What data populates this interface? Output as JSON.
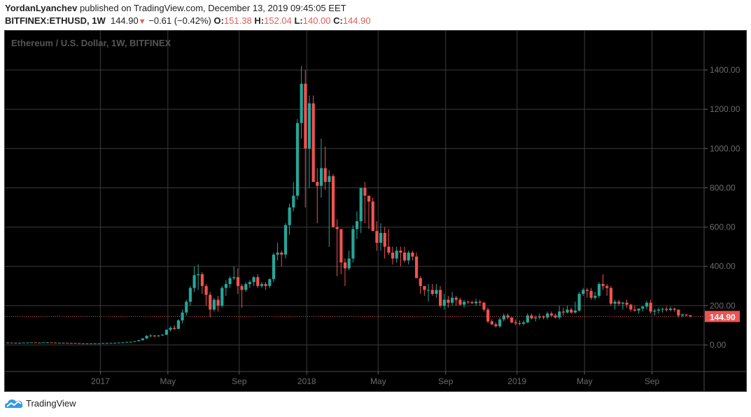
{
  "header": {
    "author": "YordanLyanchev",
    "published_text": "published on TradingView.com, December 13, 2019 09:45:05 EET",
    "symbol": "BITFINEX:ETHUSD, 1W",
    "last_price": "144.90",
    "change": "−0.61 (−0.42%)",
    "direction_icon": "triangle-down-icon",
    "ohlc": {
      "o_label": "O:",
      "o": "151.38",
      "h_label": "H:",
      "h": "152.04",
      "l_label": "L:",
      "l": "140.00",
      "c_label": "C:",
      "c": "144.90"
    }
  },
  "chart": {
    "legend": "Ethereum / U.S. Dollar, 1W, BITFINEX",
    "current_price_label": "144.90",
    "colors": {
      "up": "#26a69a",
      "down": "#ef5350",
      "background": "#000000",
      "grid": "#3c3c3c",
      "price_tag": "#ef5350"
    }
  },
  "footer": {
    "brand": "TradingView",
    "logo_icon": "tradingview-cloud-icon"
  },
  "chart_data": {
    "type": "candlestick",
    "title": "Ethereum / U.S. Dollar, 1W, BITFINEX",
    "xlabel": "",
    "ylabel": "",
    "ylim": [
      -120,
      1570
    ],
    "y_ticks": [
      0,
      200,
      400,
      600,
      800,
      1000,
      1200,
      1400
    ],
    "y_tick_labels": [
      "0.00",
      "200.00",
      "400.00",
      "600.00",
      "800.00",
      "1000.00",
      "1200.00",
      "1400.00"
    ],
    "x_tick_labels": [
      {
        "label": "2017",
        "week": 23
      },
      {
        "label": "May",
        "week": 40
      },
      {
        "label": "Sep",
        "week": 58
      },
      {
        "label": "2018",
        "week": 75
      },
      {
        "label": "May",
        "week": 93
      },
      {
        "label": "Sep",
        "week": 110
      },
      {
        "label": "2019",
        "week": 128
      },
      {
        "label": "May",
        "week": 145
      },
      {
        "label": "Sep",
        "week": 162
      }
    ],
    "grid": true,
    "current_price": 144.9,
    "candles": [
      [
        12,
        13,
        11,
        12
      ],
      [
        12,
        12,
        11,
        11
      ],
      [
        11,
        12,
        10,
        11
      ],
      [
        11,
        12,
        10,
        11
      ],
      [
        11,
        13,
        10,
        12
      ],
      [
        12,
        13,
        11,
        12
      ],
      [
        12,
        13,
        12,
        13
      ],
      [
        13,
        13,
        11,
        12
      ],
      [
        12,
        13,
        11,
        12
      ],
      [
        12,
        13,
        12,
        13
      ],
      [
        13,
        14,
        12,
        13
      ],
      [
        13,
        13,
        11,
        12
      ],
      [
        12,
        12,
        10,
        11
      ],
      [
        11,
        12,
        10,
        11
      ],
      [
        11,
        12,
        10,
        11
      ],
      [
        11,
        11,
        10,
        10
      ],
      [
        10,
        11,
        9,
        10
      ],
      [
        10,
        10,
        9,
        9
      ],
      [
        9,
        10,
        8,
        8
      ],
      [
        8,
        9,
        7,
        8
      ],
      [
        8,
        9,
        7,
        7
      ],
      [
        7,
        9,
        7,
        8
      ],
      [
        8,
        9,
        7,
        8
      ],
      [
        8,
        9,
        7,
        8
      ],
      [
        8,
        11,
        8,
        10
      ],
      [
        10,
        11,
        9,
        10
      ],
      [
        10,
        11,
        10,
        11
      ],
      [
        11,
        12,
        10,
        11
      ],
      [
        11,
        13,
        11,
        12
      ],
      [
        12,
        14,
        11,
        13
      ],
      [
        13,
        16,
        12,
        15
      ],
      [
        15,
        17,
        14,
        16
      ],
      [
        16,
        20,
        15,
        19
      ],
      [
        19,
        25,
        18,
        24
      ],
      [
        24,
        35,
        23,
        33
      ],
      [
        33,
        50,
        30,
        46
      ],
      [
        46,
        55,
        40,
        48
      ],
      [
        48,
        50,
        40,
        44
      ],
      [
        44,
        50,
        42,
        48
      ],
      [
        48,
        55,
        46,
        52
      ],
      [
        52,
        80,
        50,
        77
      ],
      [
        77,
        95,
        70,
        87
      ],
      [
        87,
        100,
        75,
        82
      ],
      [
        82,
        130,
        80,
        125
      ],
      [
        125,
        180,
        110,
        165
      ],
      [
        165,
        230,
        150,
        220
      ],
      [
        220,
        300,
        200,
        290
      ],
      [
        290,
        400,
        270,
        355
      ],
      [
        355,
        410,
        280,
        360
      ],
      [
        360,
        370,
        260,
        300
      ],
      [
        300,
        310,
        200,
        255
      ],
      [
        255,
        270,
        140,
        180
      ],
      [
        180,
        240,
        170,
        230
      ],
      [
        230,
        250,
        170,
        200
      ],
      [
        200,
        300,
        190,
        290
      ],
      [
        290,
        330,
        250,
        310
      ],
      [
        310,
        350,
        290,
        340
      ],
      [
        340,
        400,
        330,
        345
      ],
      [
        345,
        390,
        260,
        300
      ],
      [
        300,
        310,
        190,
        280
      ],
      [
        280,
        320,
        270,
        310
      ],
      [
        310,
        330,
        290,
        320
      ],
      [
        320,
        350,
        300,
        345
      ],
      [
        345,
        360,
        290,
        300
      ],
      [
        300,
        320,
        290,
        310
      ],
      [
        310,
        320,
        280,
        300
      ],
      [
        300,
        340,
        290,
        335
      ],
      [
        335,
        470,
        320,
        460
      ],
      [
        460,
        520,
        430,
        470
      ],
      [
        470,
        480,
        400,
        460
      ],
      [
        460,
        620,
        440,
        610
      ],
      [
        610,
        720,
        560,
        700
      ],
      [
        700,
        830,
        680,
        760
      ],
      [
        760,
        1150,
        740,
        1130
      ],
      [
        1130,
        1420,
        1050,
        1330
      ],
      [
        1330,
        1400,
        700,
        1000
      ],
      [
        1000,
        1270,
        800,
        1230
      ],
      [
        1230,
        1270,
        900,
        830
      ],
      [
        830,
        900,
        620,
        810
      ],
      [
        810,
        1050,
        750,
        900
      ],
      [
        900,
        1010,
        790,
        830
      ],
      [
        830,
        890,
        500,
        860
      ],
      [
        860,
        870,
        750,
        600
      ],
      [
        600,
        640,
        350,
        590
      ],
      [
        590,
        570,
        360,
        420
      ],
      [
        420,
        440,
        300,
        390
      ],
      [
        390,
        480,
        380,
        440
      ],
      [
        440,
        610,
        420,
        590
      ],
      [
        590,
        680,
        540,
        630
      ],
      [
        630,
        770,
        570,
        800
      ],
      [
        800,
        830,
        620,
        760
      ],
      [
        760,
        750,
        590,
        730
      ],
      [
        730,
        750,
        620,
        580
      ],
      [
        580,
        630,
        480,
        520
      ],
      [
        520,
        620,
        480,
        570
      ],
      [
        570,
        600,
        440,
        500
      ],
      [
        500,
        590,
        460,
        470
      ],
      [
        470,
        500,
        410,
        440
      ],
      [
        440,
        500,
        420,
        480
      ],
      [
        480,
        500,
        400,
        470
      ],
      [
        470,
        500,
        420,
        430
      ],
      [
        430,
        480,
        410,
        470
      ],
      [
        470,
        480,
        430,
        450
      ],
      [
        450,
        470,
        350,
        340
      ],
      [
        340,
        350,
        260,
        300
      ],
      [
        300,
        300,
        250,
        280
      ],
      [
        280,
        310,
        220,
        280
      ],
      [
        280,
        310,
        250,
        260
      ],
      [
        260,
        310,
        240,
        280
      ],
      [
        280,
        300,
        190,
        200
      ],
      [
        200,
        260,
        180,
        230
      ],
      [
        230,
        250,
        190,
        215
      ],
      [
        215,
        270,
        200,
        240
      ],
      [
        240,
        250,
        200,
        230
      ],
      [
        230,
        240,
        200,
        205
      ],
      [
        205,
        230,
        190,
        220
      ],
      [
        220,
        225,
        210,
        218
      ],
      [
        218,
        225,
        210,
        212
      ],
      [
        212,
        235,
        200,
        220
      ],
      [
        220,
        230,
        200,
        215
      ],
      [
        215,
        220,
        170,
        180
      ],
      [
        180,
        190,
        110,
        120
      ],
      [
        120,
        130,
        100,
        105
      ],
      [
        105,
        115,
        90,
        95
      ],
      [
        95,
        140,
        88,
        130
      ],
      [
        130,
        160,
        120,
        150
      ],
      [
        150,
        160,
        130,
        140
      ],
      [
        140,
        140,
        110,
        115
      ],
      [
        115,
        130,
        100,
        110
      ],
      [
        110,
        125,
        100,
        108
      ],
      [
        108,
        125,
        100,
        115
      ],
      [
        115,
        160,
        110,
        150
      ],
      [
        150,
        160,
        130,
        135
      ],
      [
        135,
        150,
        120,
        140
      ],
      [
        140,
        160,
        130,
        145
      ],
      [
        145,
        150,
        130,
        140
      ],
      [
        140,
        170,
        130,
        160
      ],
      [
        160,
        170,
        140,
        150
      ],
      [
        150,
        160,
        135,
        140
      ],
      [
        140,
        200,
        130,
        170
      ],
      [
        170,
        190,
        150,
        165
      ],
      [
        165,
        200,
        160,
        180
      ],
      [
        180,
        190,
        160,
        165
      ],
      [
        165,
        220,
        160,
        175
      ],
      [
        175,
        270,
        170,
        260
      ],
      [
        260,
        290,
        250,
        280
      ],
      [
        280,
        290,
        240,
        275
      ],
      [
        275,
        290,
        230,
        240
      ],
      [
        240,
        270,
        230,
        250
      ],
      [
        250,
        320,
        240,
        310
      ],
      [
        310,
        360,
        280,
        300
      ],
      [
        300,
        310,
        250,
        290
      ],
      [
        290,
        300,
        200,
        210
      ],
      [
        210,
        230,
        180,
        220
      ],
      [
        220,
        230,
        200,
        210
      ],
      [
        210,
        220,
        180,
        215
      ],
      [
        215,
        230,
        190,
        205
      ],
      [
        205,
        210,
        170,
        180
      ],
      [
        180,
        200,
        170,
        175
      ],
      [
        175,
        185,
        160,
        185
      ],
      [
        185,
        200,
        170,
        195
      ],
      [
        195,
        225,
        180,
        215
      ],
      [
        215,
        230,
        160,
        170
      ],
      [
        170,
        185,
        150,
        175
      ],
      [
        175,
        190,
        160,
        180
      ],
      [
        180,
        190,
        165,
        183
      ],
      [
        183,
        195,
        170,
        178
      ],
      [
        178,
        195,
        170,
        185
      ],
      [
        185,
        190,
        170,
        180
      ],
      [
        180,
        180,
        140,
        150
      ],
      [
        150,
        160,
        140,
        155
      ],
      [
        155,
        156,
        145,
        151
      ],
      [
        151,
        152,
        140,
        145
      ]
    ]
  }
}
